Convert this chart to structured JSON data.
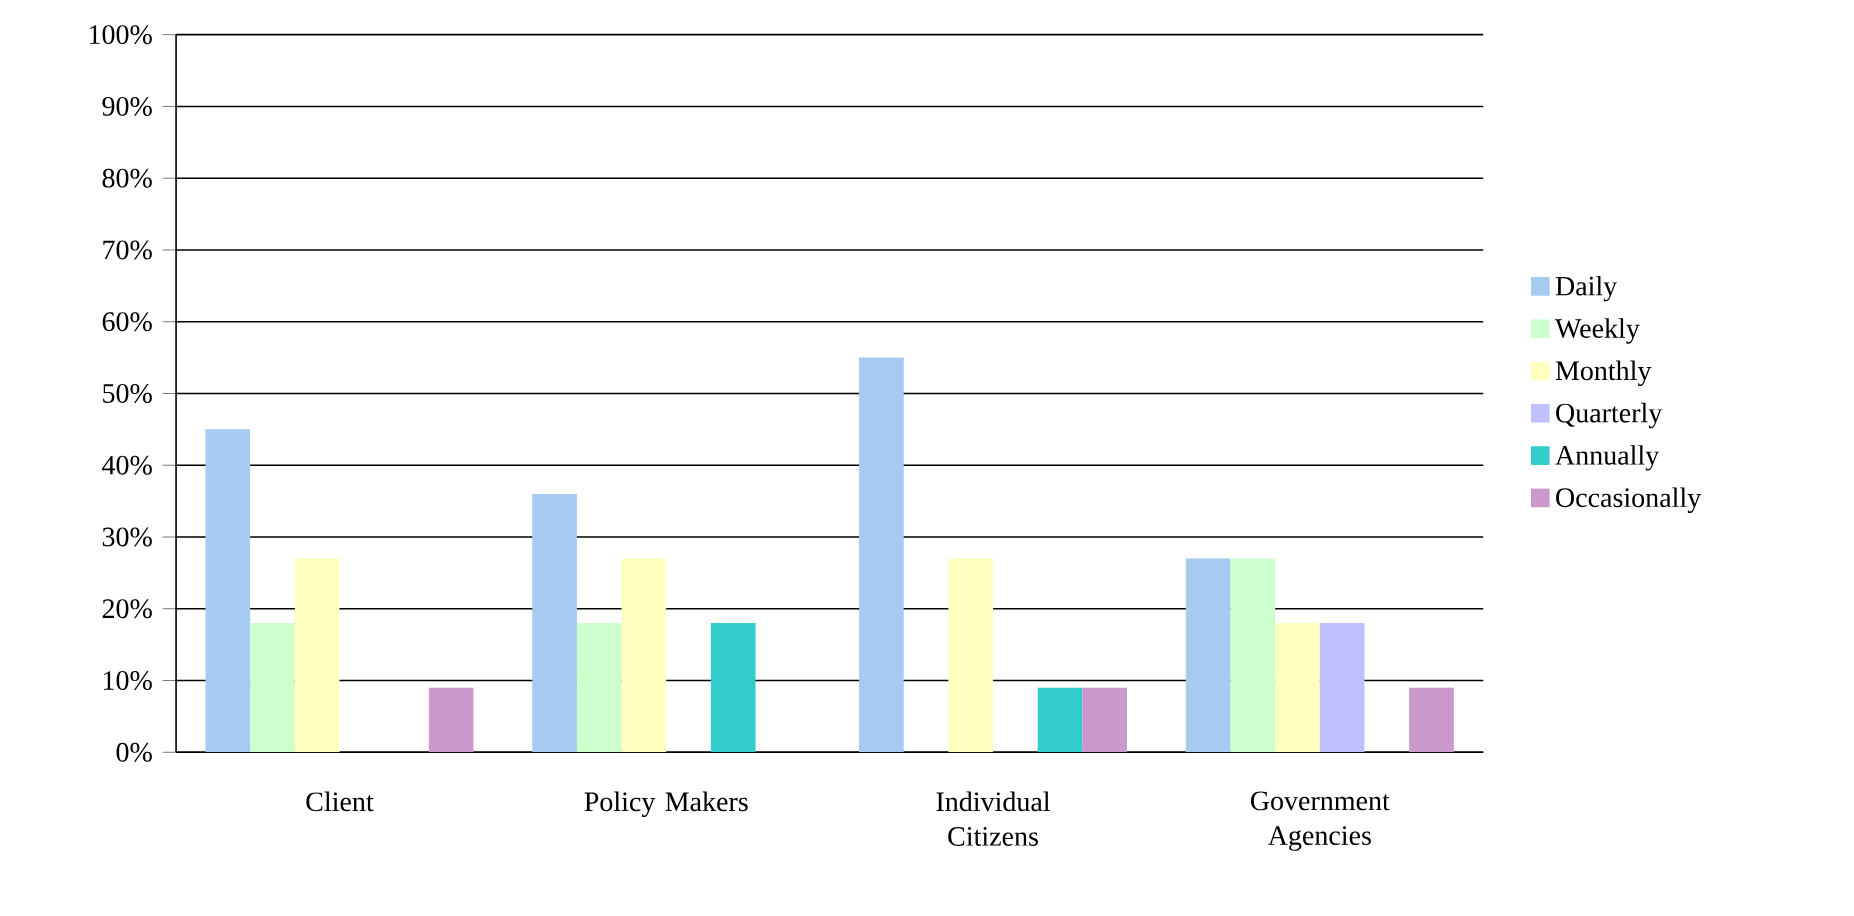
{
  "chart_data": {
    "type": "bar",
    "categories": [
      "Client",
      "Policy Makers",
      "Individual Citizens",
      "Government Agencies"
    ],
    "series": [
      {
        "name": "Daily",
        "color": "#a6caf0",
        "values": [
          45,
          36,
          55,
          27
        ]
      },
      {
        "name": "Weekly",
        "color": "#ccffcc",
        "values": [
          18,
          18,
          0,
          27
        ]
      },
      {
        "name": "Monthly",
        "color": "#ffffc0",
        "values": [
          27,
          27,
          27,
          18
        ]
      },
      {
        "name": "Quarterly",
        "color": "#c0c0ff",
        "values": [
          0,
          0,
          0,
          18
        ]
      },
      {
        "name": "Annually",
        "color": "#33cccc",
        "values": [
          0,
          18,
          9,
          0
        ]
      },
      {
        "name": "Occasionally",
        "color": "#cc99cc",
        "values": [
          9,
          0,
          9,
          9
        ]
      }
    ],
    "ylim": [
      0,
      100
    ],
    "yticks": [
      {
        "value": 0,
        "label": "0%"
      },
      {
        "value": 10,
        "label": "10%"
      },
      {
        "value": 20,
        "label": "20%"
      },
      {
        "value": 30,
        "label": "30%"
      },
      {
        "value": 40,
        "label": "40%"
      },
      {
        "value": 50,
        "label": "50%"
      },
      {
        "value": 60,
        "label": "60%"
      },
      {
        "value": 70,
        "label": "70%"
      },
      {
        "value": 80,
        "label": "80%"
      },
      {
        "value": 90,
        "label": "90%"
      },
      {
        "value": 100,
        "label": "100%"
      }
    ],
    "grid": "y",
    "legend": "right"
  }
}
